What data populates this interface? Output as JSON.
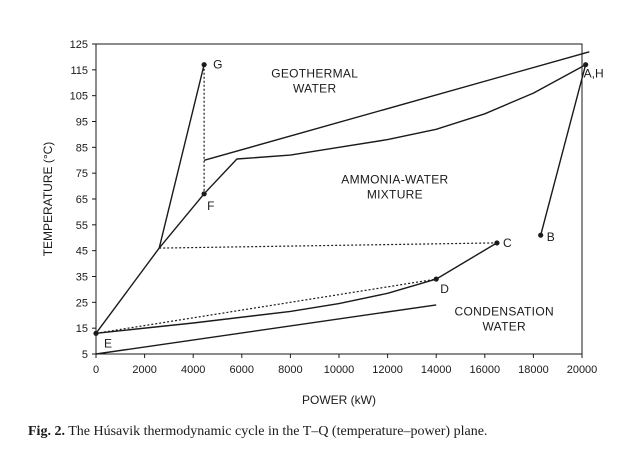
{
  "chart_data": {
    "type": "line",
    "title": "",
    "xlabel": "POWER (kW)",
    "ylabel": "TEMPERATURE (°C)",
    "xlim": [
      0,
      20000
    ],
    "ylim": [
      5,
      125
    ],
    "xticks": [
      "0",
      "2000",
      "4000",
      "6000",
      "8000",
      "10000",
      "12000",
      "14000",
      "16000",
      "18000",
      "20000"
    ],
    "yticks": [
      "5",
      "15",
      "25",
      "35",
      "45",
      "55",
      "65",
      "75",
      "85",
      "95",
      "105",
      "115",
      "125"
    ],
    "series": [
      {
        "name": "geothermal-water-upper",
        "style": "solid",
        "x": [
          4450,
          20300
        ],
        "y": [
          80,
          122
        ]
      },
      {
        "name": "ammonia-water-mixture",
        "style": "solid",
        "x": [
          0,
          2600,
          4450,
          5800,
          8000,
          10000,
          12000,
          14000,
          16000,
          18000,
          20150
        ],
        "y": [
          13,
          46,
          67,
          80.5,
          82,
          85,
          88,
          92,
          98,
          106,
          117
        ]
      },
      {
        "name": "G-to-F-outer",
        "style": "solid",
        "x": [
          2600,
          4450
        ],
        "y": [
          46,
          117
        ]
      },
      {
        "name": "G-to-F-vertical",
        "style": "dotted",
        "x": [
          4450,
          4450
        ],
        "y": [
          117,
          67
        ]
      },
      {
        "name": "C-horizontal",
        "style": "dotted",
        "x": [
          2600,
          16500
        ],
        "y": [
          46,
          48
        ]
      },
      {
        "name": "D-to-C",
        "style": "solid",
        "x": [
          14000,
          16500
        ],
        "y": [
          34,
          48
        ]
      },
      {
        "name": "B-to-AH",
        "style": "solid",
        "x": [
          18300,
          20150
        ],
        "y": [
          51,
          117
        ]
      },
      {
        "name": "E-to-D-dotted",
        "style": "dotted",
        "x": [
          0,
          14000
        ],
        "y": [
          13,
          34
        ]
      },
      {
        "name": "E-to-D-solid",
        "style": "solid",
        "x": [
          0,
          4000,
          8000,
          10000,
          12000,
          14000
        ],
        "y": [
          13,
          17,
          21.5,
          24.5,
          28.5,
          34
        ]
      },
      {
        "name": "condensation-water",
        "style": "solid",
        "x": [
          0,
          14000
        ],
        "y": [
          5,
          24
        ]
      }
    ],
    "points": [
      {
        "label": "G",
        "x": 4450,
        "y": 117
      },
      {
        "label": "F",
        "x": 4450,
        "y": 67
      },
      {
        "label": "C",
        "x": 16500,
        "y": 48
      },
      {
        "label": "B",
        "x": 18300,
        "y": 51
      },
      {
        "label": "A,H",
        "x": 20150,
        "y": 117
      },
      {
        "label": "D",
        "x": 14000,
        "y": 34
      },
      {
        "label": "E",
        "x": 0,
        "y": 13
      }
    ],
    "annotations": [
      {
        "lines": [
          "GEOTHERMAL",
          "WATER"
        ],
        "x": 9000,
        "y": 112
      },
      {
        "lines": [
          "AMMONIA-WATER",
          "MIXTURE"
        ],
        "x": 12300,
        "y": 71
      },
      {
        "lines": [
          "CONDENSATION",
          "WATER"
        ],
        "x": 16800,
        "y": 20
      }
    ]
  },
  "caption": {
    "figure_number": "Fig. 2.",
    "text": "The Húsavik thermodynamic cycle in the T–Q (temperature–power) plane."
  }
}
